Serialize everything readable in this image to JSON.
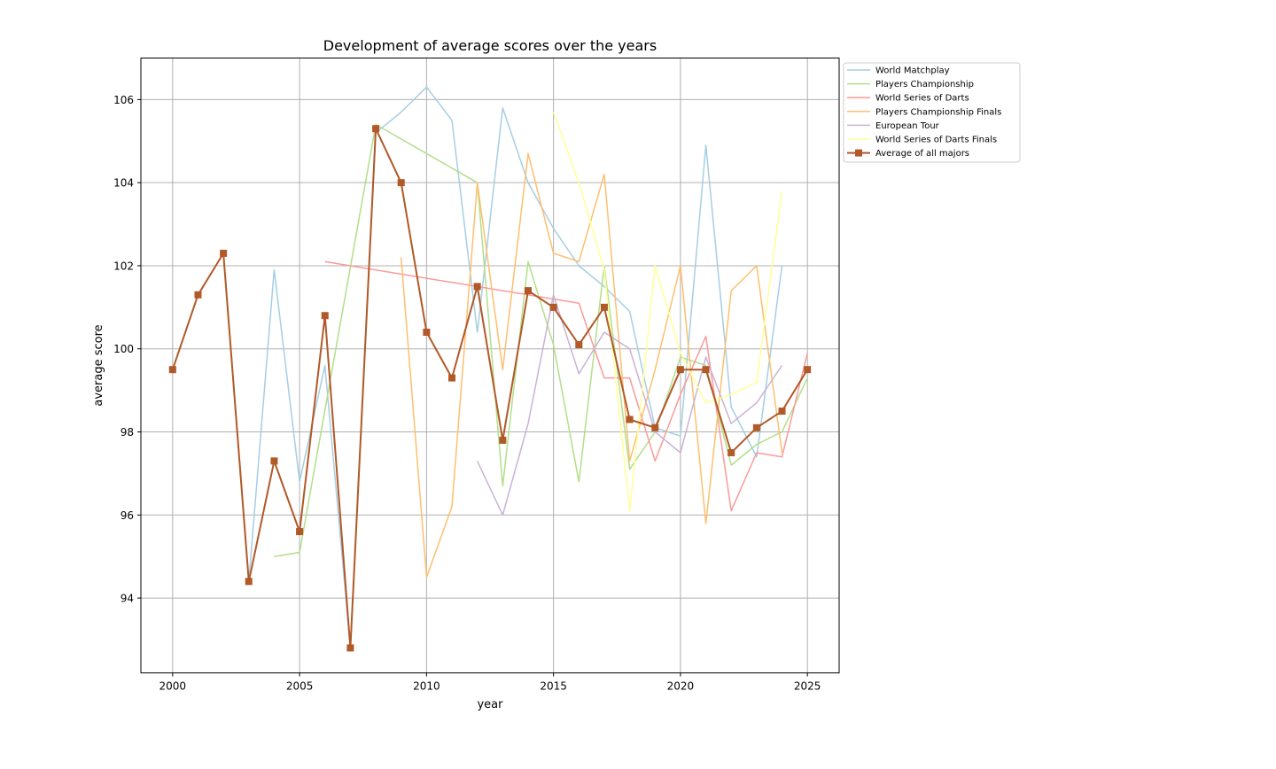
{
  "chart_data": {
    "type": "line",
    "title": "Development of average scores over the years",
    "xlabel": "year",
    "ylabel": "average score",
    "xlim": [
      1998.75,
      2026.25
    ],
    "ylim": [
      92.2,
      107.0
    ],
    "xticks": [
      2000,
      2005,
      2010,
      2015,
      2020,
      2025
    ],
    "yticks": [
      94,
      96,
      98,
      100,
      102,
      104,
      106
    ],
    "grid": true,
    "legend_position": "outside-right",
    "series": [
      {
        "name": "World Matchplay",
        "color": "#a6cee3",
        "marker": "none",
        "points": [
          [
            2003,
            94.4
          ],
          [
            2004,
            101.9
          ],
          [
            2005,
            96.8
          ],
          [
            2006,
            99.6
          ],
          [
            2007,
            92.8
          ],
          [
            2008,
            105.2
          ],
          [
            2009,
            105.7
          ],
          [
            2010,
            106.3
          ],
          [
            2011,
            105.5
          ],
          [
            2012,
            100.4
          ],
          [
            2013,
            105.8
          ],
          [
            2014,
            104.0
          ],
          [
            2015,
            102.9
          ],
          [
            2016,
            102.0
          ],
          [
            2017,
            101.5
          ],
          [
            2018,
            100.9
          ],
          [
            2019,
            98.1
          ],
          [
            2020,
            97.9
          ],
          [
            2021,
            104.9
          ],
          [
            2022,
            98.6
          ],
          [
            2023,
            97.4
          ],
          [
            2024,
            102.0
          ]
        ]
      },
      {
        "name": "Players Championship",
        "color": "#b2df8a",
        "marker": "none",
        "points": [
          [
            2004,
            95.0
          ],
          [
            2005,
            95.1
          ],
          [
            2008,
            105.4
          ],
          [
            2012,
            104.0
          ],
          [
            2013,
            96.7
          ],
          [
            2014,
            102.1
          ],
          [
            2015,
            100.1
          ],
          [
            2016,
            96.8
          ],
          [
            2017,
            102.0
          ],
          [
            2018,
            97.1
          ],
          [
            2019,
            98.0
          ],
          [
            2020,
            99.8
          ],
          [
            2021,
            99.6
          ],
          [
            2022,
            97.2
          ],
          [
            2023,
            97.7
          ],
          [
            2024,
            98.0
          ],
          [
            2025,
            99.3
          ]
        ]
      },
      {
        "name": "World Series of Darts",
        "color": "#fb9a99",
        "marker": "none",
        "points": [
          [
            2006,
            102.1
          ],
          [
            2016,
            101.1
          ],
          [
            2017,
            99.3
          ],
          [
            2018,
            99.3
          ],
          [
            2019,
            97.3
          ],
          [
            2020,
            98.9
          ],
          [
            2021,
            100.3
          ],
          [
            2022,
            96.1
          ],
          [
            2023,
            97.5
          ],
          [
            2024,
            97.4
          ],
          [
            2025,
            99.9
          ]
        ]
      },
      {
        "name": "Players Championship Finals",
        "color": "#fdbf6f",
        "marker": "none",
        "points": [
          [
            2009,
            102.2
          ],
          [
            2010,
            94.5
          ],
          [
            2011,
            96.2
          ],
          [
            2012,
            104.0
          ],
          [
            2013,
            99.5
          ],
          [
            2014,
            104.7
          ],
          [
            2015,
            102.3
          ],
          [
            2016,
            102.1
          ],
          [
            2017,
            104.2
          ],
          [
            2018,
            97.3
          ],
          [
            2019,
            99.5
          ],
          [
            2020,
            102.0
          ],
          [
            2021,
            95.8
          ],
          [
            2022,
            101.4
          ],
          [
            2023,
            102.0
          ],
          [
            2024,
            97.5
          ]
        ]
      },
      {
        "name": "European Tour",
        "color": "#cab2d6",
        "marker": "none",
        "points": [
          [
            2012,
            97.3
          ],
          [
            2013,
            96.0
          ],
          [
            2014,
            98.2
          ],
          [
            2015,
            101.3
          ],
          [
            2016,
            99.4
          ],
          [
            2017,
            100.4
          ],
          [
            2018,
            100.0
          ],
          [
            2019,
            98.0
          ],
          [
            2020,
            97.5
          ],
          [
            2021,
            99.8
          ],
          [
            2022,
            98.2
          ],
          [
            2023,
            98.7
          ],
          [
            2024,
            99.6
          ]
        ]
      },
      {
        "name": "World Series of Darts Finals",
        "color": "#ffff99",
        "marker": "none",
        "points": [
          [
            2015,
            105.7
          ],
          [
            2016,
            104.0
          ],
          [
            2017,
            101.9
          ],
          [
            2018,
            96.1
          ],
          [
            2019,
            102.0
          ],
          [
            2020,
            99.9
          ],
          [
            2021,
            98.7
          ],
          [
            2022,
            98.9
          ],
          [
            2023,
            99.2
          ],
          [
            2024,
            103.8
          ]
        ]
      },
      {
        "name": "Average of all majors",
        "color": "#b15928",
        "marker": "square",
        "points": [
          [
            2000,
            99.5
          ],
          [
            2001,
            101.3
          ],
          [
            2002,
            102.3
          ],
          [
            2003,
            94.4
          ],
          [
            2004,
            97.3
          ],
          [
            2005,
            95.6
          ],
          [
            2006,
            100.8
          ],
          [
            2007,
            92.8
          ],
          [
            2008,
            105.3
          ],
          [
            2009,
            104.0
          ],
          [
            2010,
            100.4
          ],
          [
            2011,
            99.3
          ],
          [
            2012,
            101.5
          ],
          [
            2013,
            97.8
          ],
          [
            2014,
            101.4
          ],
          [
            2015,
            101.0
          ],
          [
            2016,
            100.1
          ],
          [
            2017,
            101.0
          ],
          [
            2018,
            98.3
          ],
          [
            2019,
            98.1
          ],
          [
            2020,
            99.5
          ],
          [
            2021,
            99.5
          ],
          [
            2022,
            97.5
          ],
          [
            2023,
            98.1
          ],
          [
            2024,
            98.5
          ],
          [
            2025,
            99.5
          ]
        ]
      }
    ]
  }
}
